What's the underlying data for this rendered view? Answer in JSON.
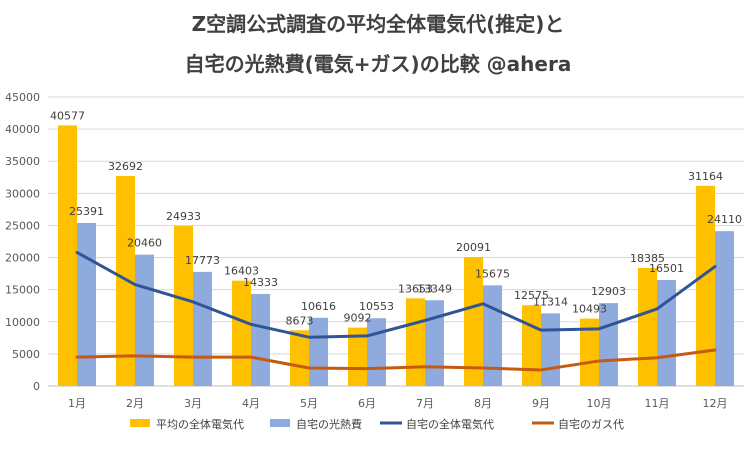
{
  "title": {
    "line1": "Z空調公式調査の平均全体電気代(推定)と",
    "line2": "自宅の光熱費(電気+ガス)の比較 @ahera"
  },
  "chart_data": {
    "type": "bar",
    "title": "Z空調公式調査の平均全体電気代(推定)と自宅の光熱費(電気+ガス)の比較 @ahera",
    "categories": [
      "1月",
      "2月",
      "3月",
      "4月",
      "5月",
      "6月",
      "7月",
      "8月",
      "9月",
      "10月",
      "11月",
      "12月"
    ],
    "ylim": [
      0,
      45000
    ],
    "yticks": [
      0,
      5000,
      10000,
      15000,
      20000,
      25000,
      30000,
      35000,
      40000,
      45000
    ],
    "grid": true,
    "legend_position": "bottom",
    "series": [
      {
        "name": "平均の全体電気代",
        "kind": "bar",
        "color": "#FFC000",
        "values": [
          40577,
          32692,
          24933,
          16403,
          8673,
          9092,
          13653,
          20091,
          12575,
          10493,
          18385,
          31164
        ]
      },
      {
        "name": "自宅の光熱費",
        "kind": "bar",
        "color": "#8FAADC",
        "values": [
          25391,
          20460,
          17773,
          14333,
          10616,
          10553,
          13349,
          15675,
          11314,
          12903,
          16501,
          24110
        ]
      },
      {
        "name": "自宅の全体電気代",
        "kind": "line",
        "color": "#2F5597",
        "values": [
          20800,
          15800,
          13100,
          9600,
          7600,
          7800,
          10200,
          12800,
          8700,
          8900,
          12000,
          18600
        ]
      },
      {
        "name": "自宅のガス代",
        "kind": "line",
        "color": "#C55A11",
        "values": [
          4500,
          4700,
          4500,
          4500,
          2800,
          2700,
          3000,
          2800,
          2500,
          3900,
          4400,
          5600
        ]
      }
    ]
  }
}
